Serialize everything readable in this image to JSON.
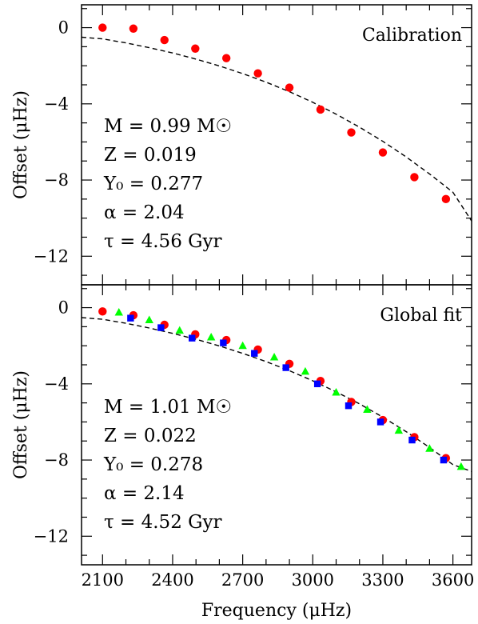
{
  "chart_data": [
    {
      "type": "scatter",
      "title": "Calibration",
      "xlabel": "Frequency (μHz)",
      "ylabel": "Offset (μHz)",
      "xlim": [
        2010,
        3680
      ],
      "ylim": [
        -13.5,
        1.2
      ],
      "x_ticks": [
        "2100",
        "2400",
        "2700",
        "3000",
        "3300",
        "3600"
      ],
      "y_ticks": [
        "0",
        "−4",
        "−8",
        "−12"
      ],
      "y_tick_values": [
        0,
        -4,
        -8,
        -12
      ],
      "parameters": [
        "M = 0.99 M☉",
        "Z = 0.019",
        "Y₀ = 0.277",
        "α = 2.04",
        "τ = 4.56 Gyr"
      ],
      "fit_curve": {
        "style": "dashed",
        "x": [
          2010,
          2100,
          2200,
          2300,
          2400,
          2500,
          2600,
          2700,
          2800,
          2900,
          3000,
          3100,
          3200,
          3300,
          3400,
          3500,
          3600,
          3680
        ],
        "y": [
          -0.5,
          -0.59,
          -0.8,
          -1.05,
          -1.33,
          -1.65,
          -2.01,
          -2.41,
          -2.86,
          -3.36,
          -3.92,
          -4.54,
          -5.22,
          -5.97,
          -6.79,
          -7.68,
          -8.64,
          -10.15
        ]
      },
      "series": [
        {
          "marker": "circle",
          "color": "#ff0000",
          "x": [
            2100,
            2232,
            2365,
            2497,
            2630,
            2765,
            2900,
            3033,
            3165,
            3300,
            3435,
            3570
          ],
          "y": [
            0.0,
            -0.05,
            -0.65,
            -1.1,
            -1.6,
            -2.4,
            -3.15,
            -4.3,
            -5.5,
            -6.55,
            -7.85,
            -9.0
          ]
        }
      ]
    },
    {
      "type": "scatter",
      "title": "Global fit",
      "xlabel": "Frequency (μHz)",
      "ylabel": "Offset (μHz)",
      "xlim": [
        2010,
        3680
      ],
      "ylim": [
        -13.5,
        1.2
      ],
      "x_ticks": [
        "2100",
        "2400",
        "2700",
        "3000",
        "3300",
        "3600"
      ],
      "x_tick_values": [
        2100,
        2400,
        2700,
        3000,
        3300,
        3600
      ],
      "y_ticks": [
        "0",
        "−4",
        "−8",
        "−12"
      ],
      "y_tick_values": [
        0,
        -4,
        -8,
        -12
      ],
      "parameters": [
        "M = 1.01 M☉",
        "Z = 0.022",
        "Y₀ = 0.278",
        "α = 2.14",
        "τ = 4.52 Gyr"
      ],
      "fit_curve": {
        "style": "dashed",
        "x": [
          2010,
          2100,
          2200,
          2300,
          2400,
          2500,
          2600,
          2700,
          2800,
          2900,
          3000,
          3100,
          3200,
          3300,
          3400,
          3500,
          3600,
          3680
        ],
        "y": [
          -0.52,
          -0.61,
          -0.82,
          -1.07,
          -1.35,
          -1.66,
          -2.01,
          -2.4,
          -2.83,
          -3.31,
          -3.84,
          -4.42,
          -5.05,
          -5.75,
          -6.51,
          -7.34,
          -8.24,
          -8.6
        ]
      },
      "series": [
        {
          "marker": "circle",
          "color": "#ff0000",
          "x": [
            2100,
            2232,
            2365,
            2497,
            2630,
            2765,
            2900,
            3033,
            3165,
            3300,
            3435,
            3570
          ],
          "y": [
            -0.2,
            -0.4,
            -0.9,
            -1.4,
            -1.7,
            -2.2,
            -2.95,
            -3.85,
            -4.95,
            -5.9,
            -6.8,
            -7.9
          ]
        },
        {
          "marker": "square",
          "color": "#0000ff",
          "x": [
            2220,
            2350,
            2483,
            2617,
            2750,
            2885,
            3020,
            3153,
            3290,
            3425,
            3560
          ],
          "y": [
            -0.55,
            -1.05,
            -1.6,
            -1.85,
            -2.4,
            -3.15,
            -4.0,
            -5.15,
            -6.0,
            -6.95,
            -8.0
          ]
        },
        {
          "marker": "triangle",
          "color": "#00ff00",
          "x": [
            2170,
            2300,
            2430,
            2565,
            2700,
            2835,
            2968,
            3100,
            3233,
            3368,
            3500,
            3635
          ],
          "y": [
            -0.25,
            -0.65,
            -1.2,
            -1.55,
            -2.0,
            -2.6,
            -3.35,
            -4.45,
            -5.35,
            -6.45,
            -7.4,
            -8.35
          ]
        }
      ]
    }
  ]
}
